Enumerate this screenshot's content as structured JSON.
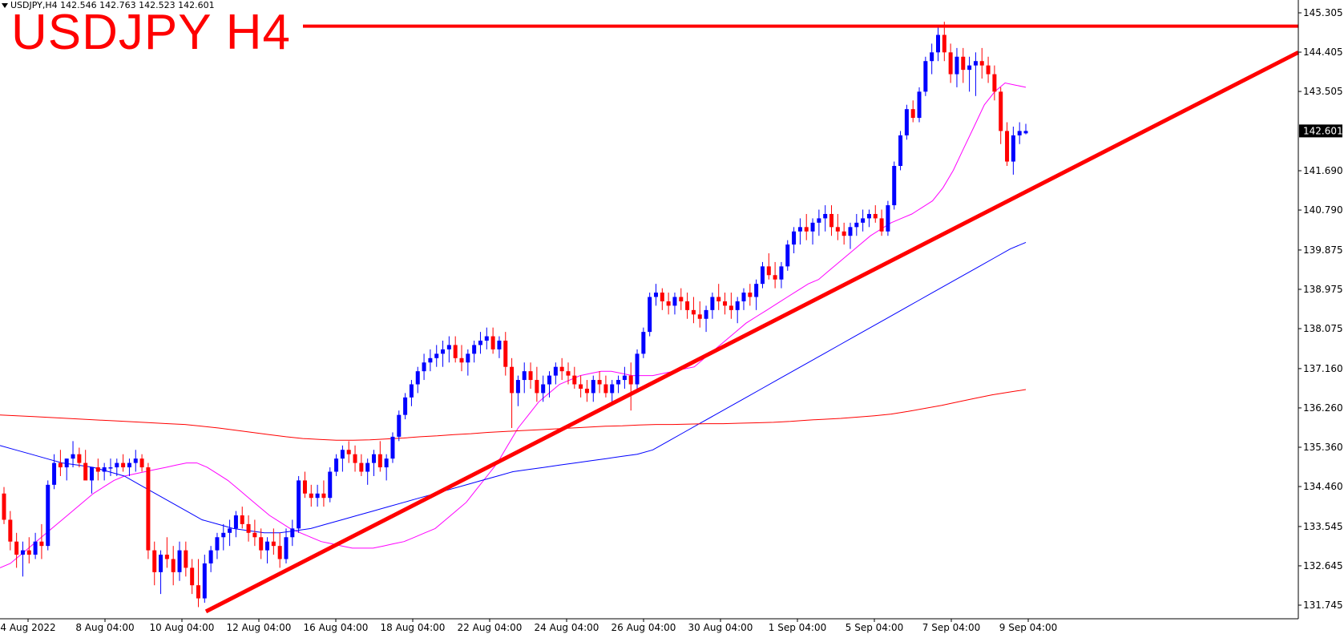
{
  "header": {
    "symbol_line": "USDJPY,H4  142.546 142.763 142.523 142.601"
  },
  "title": "USDJPY H4",
  "current_price": "142.601",
  "colors": {
    "bull": "#0000ff",
    "bear": "#ff0000",
    "ma_fast": "#ff00ff",
    "ma_mid": "#0000ff",
    "ma_slow": "#ff0000",
    "trend": "#ff0000",
    "axis": "#000000",
    "price_tag_bg": "#000000"
  },
  "chart_data": {
    "type": "candlestick",
    "y_axis_ticks": [
      "145.305",
      "144.405",
      "143.505",
      "142.601",
      "141.690",
      "140.790",
      "139.875",
      "138.975",
      "138.075",
      "137.160",
      "136.260",
      "135.360",
      "134.460",
      "133.545",
      "132.645",
      "131.745"
    ],
    "ylim": [
      131.5,
      145.5
    ],
    "x_axis_ticks": [
      "4 Aug 2022",
      "8 Aug 04:00",
      "10 Aug 04:00",
      "12 Aug 04:00",
      "16 Aug 04:00",
      "18 Aug 04:00",
      "22 Aug 04:00",
      "24 Aug 04:00",
      "26 Aug 04:00",
      "30 Aug 04:00",
      "1 Sep 04:00",
      "5 Sep 04:00",
      "7 Sep 04:00",
      "9 Sep 04:00"
    ],
    "candles_ohlc": [
      [
        134.3,
        134.45,
        133.6,
        133.7
      ],
      [
        133.7,
        133.9,
        133.0,
        133.2
      ],
      [
        133.2,
        133.4,
        132.6,
        132.9
      ],
      [
        132.9,
        133.2,
        132.4,
        133.0
      ],
      [
        133.0,
        133.3,
        132.7,
        132.9
      ],
      [
        132.9,
        133.4,
        132.8,
        133.2
      ],
      [
        133.2,
        133.6,
        132.8,
        133.1
      ],
      [
        133.1,
        134.6,
        133.0,
        134.5
      ],
      [
        134.5,
        135.2,
        134.4,
        135.0
      ],
      [
        135.0,
        135.3,
        134.7,
        134.9
      ],
      [
        134.9,
        135.1,
        134.6,
        135.1
      ],
      [
        135.1,
        135.5,
        134.9,
        135.2
      ],
      [
        135.2,
        135.35,
        134.9,
        135.0
      ],
      [
        135.0,
        135.3,
        134.7,
        134.6
      ],
      [
        134.6,
        134.9,
        134.3,
        134.9
      ],
      [
        134.9,
        135.1,
        134.6,
        134.8
      ],
      [
        134.8,
        135.0,
        134.6,
        134.9
      ],
      [
        134.9,
        135.1,
        134.7,
        134.9
      ],
      [
        134.9,
        135.1,
        134.7,
        135.0
      ],
      [
        135.0,
        135.2,
        134.8,
        134.9
      ],
      [
        134.9,
        135.1,
        134.7,
        135.0
      ],
      [
        135.0,
        135.3,
        134.8,
        135.1
      ],
      [
        135.1,
        135.2,
        134.8,
        134.9
      ],
      [
        134.9,
        135.0,
        132.8,
        133.0
      ],
      [
        133.0,
        133.2,
        132.2,
        132.5
      ],
      [
        132.5,
        133.0,
        132.0,
        132.9
      ],
      [
        132.9,
        133.3,
        132.6,
        132.8
      ],
      [
        132.8,
        133.1,
        132.2,
        132.5
      ],
      [
        132.5,
        133.2,
        132.3,
        133.0
      ],
      [
        133.0,
        133.2,
        132.4,
        132.6
      ],
      [
        132.6,
        132.8,
        132.0,
        132.2
      ],
      [
        132.2,
        132.8,
        131.7,
        131.9
      ],
      [
        131.9,
        132.9,
        131.8,
        132.7
      ],
      [
        132.7,
        133.1,
        132.5,
        133.0
      ],
      [
        133.0,
        133.4,
        132.8,
        133.3
      ],
      [
        133.3,
        133.6,
        133.0,
        133.4
      ],
      [
        133.4,
        133.7,
        133.1,
        133.5
      ],
      [
        133.5,
        133.9,
        133.3,
        133.8
      ],
      [
        133.8,
        134.0,
        133.5,
        133.6
      ],
      [
        133.6,
        133.8,
        133.2,
        133.4
      ],
      [
        133.4,
        133.7,
        133.1,
        133.3
      ],
      [
        133.3,
        133.5,
        132.8,
        133.0
      ],
      [
        133.0,
        133.3,
        132.7,
        133.2
      ],
      [
        133.2,
        133.5,
        132.9,
        133.1
      ],
      [
        133.1,
        133.4,
        132.6,
        132.8
      ],
      [
        132.8,
        133.5,
        132.7,
        133.3
      ],
      [
        133.3,
        133.7,
        133.1,
        133.5
      ],
      [
        133.5,
        134.7,
        133.4,
        134.6
      ],
      [
        134.6,
        134.8,
        134.2,
        134.3
      ],
      [
        134.3,
        134.5,
        134.0,
        134.2
      ],
      [
        134.2,
        134.5,
        134.0,
        134.3
      ],
      [
        134.3,
        134.6,
        134.0,
        134.2
      ],
      [
        134.2,
        134.9,
        134.1,
        134.8
      ],
      [
        134.8,
        135.2,
        134.7,
        135.1
      ],
      [
        135.1,
        135.4,
        134.8,
        135.3
      ],
      [
        135.3,
        135.5,
        135.0,
        135.2
      ],
      [
        135.2,
        135.4,
        134.8,
        135.0
      ],
      [
        135.0,
        135.2,
        134.7,
        134.8
      ],
      [
        134.8,
        135.1,
        134.5,
        135.0
      ],
      [
        135.0,
        135.3,
        134.7,
        135.2
      ],
      [
        135.2,
        135.5,
        134.8,
        134.9
      ],
      [
        134.9,
        135.2,
        134.6,
        135.1
      ],
      [
        135.1,
        135.7,
        135.0,
        135.6
      ],
      [
        135.6,
        136.2,
        135.5,
        136.1
      ],
      [
        136.1,
        136.6,
        136.0,
        136.5
      ],
      [
        136.5,
        136.9,
        136.3,
        136.8
      ],
      [
        136.8,
        137.2,
        136.6,
        137.1
      ],
      [
        137.1,
        137.5,
        136.9,
        137.3
      ],
      [
        137.3,
        137.6,
        137.1,
        137.4
      ],
      [
        137.4,
        137.7,
        137.2,
        137.5
      ],
      [
        137.5,
        137.8,
        137.2,
        137.6
      ],
      [
        137.6,
        137.9,
        137.3,
        137.7
      ],
      [
        137.7,
        137.9,
        137.3,
        137.4
      ],
      [
        137.4,
        137.7,
        137.1,
        137.3
      ],
      [
        137.3,
        137.6,
        137.0,
        137.5
      ],
      [
        137.5,
        137.8,
        137.3,
        137.7
      ],
      [
        137.7,
        138.0,
        137.5,
        137.8
      ],
      [
        137.8,
        138.1,
        137.6,
        137.9
      ],
      [
        137.9,
        138.1,
        137.5,
        137.6
      ],
      [
        137.6,
        137.9,
        137.4,
        137.8
      ],
      [
        137.8,
        138.0,
        137.0,
        137.2
      ],
      [
        137.2,
        137.4,
        135.8,
        136.6
      ],
      [
        136.6,
        137.0,
        136.3,
        136.9
      ],
      [
        136.9,
        137.3,
        136.6,
        137.1
      ],
      [
        137.1,
        137.3,
        136.7,
        136.9
      ],
      [
        136.9,
        137.2,
        136.4,
        136.6
      ],
      [
        136.6,
        137.0,
        136.4,
        136.8
      ],
      [
        136.8,
        137.1,
        136.5,
        137.0
      ],
      [
        137.0,
        137.3,
        136.8,
        137.2
      ],
      [
        137.2,
        137.4,
        136.9,
        137.1
      ],
      [
        137.1,
        137.3,
        136.8,
        137.0
      ],
      [
        137.0,
        137.2,
        136.7,
        136.8
      ],
      [
        136.8,
        137.0,
        136.5,
        136.7
      ],
      [
        136.7,
        136.9,
        136.4,
        136.6
      ],
      [
        136.6,
        137.0,
        136.4,
        136.9
      ],
      [
        136.9,
        137.1,
        136.6,
        136.8
      ],
      [
        136.8,
        137.0,
        136.5,
        136.6
      ],
      [
        136.6,
        136.9,
        136.4,
        136.8
      ],
      [
        136.8,
        137.0,
        136.6,
        136.9
      ],
      [
        136.9,
        137.2,
        136.7,
        137.0
      ],
      [
        137.0,
        137.3,
        136.2,
        136.8
      ],
      [
        136.8,
        137.6,
        136.7,
        137.5
      ],
      [
        137.5,
        138.1,
        137.4,
        138.0
      ],
      [
        138.0,
        138.9,
        137.9,
        138.8
      ],
      [
        138.8,
        139.1,
        138.6,
        138.9
      ],
      [
        138.9,
        139.0,
        138.5,
        138.7
      ],
      [
        138.7,
        138.9,
        138.4,
        138.6
      ],
      [
        138.6,
        138.9,
        138.4,
        138.8
      ],
      [
        138.8,
        139.0,
        138.5,
        138.7
      ],
      [
        138.7,
        138.9,
        138.3,
        138.5
      ],
      [
        138.5,
        138.8,
        138.2,
        138.4
      ],
      [
        138.4,
        138.7,
        138.1,
        138.3
      ],
      [
        138.3,
        138.6,
        138.0,
        138.5
      ],
      [
        138.5,
        138.9,
        138.3,
        138.8
      ],
      [
        138.8,
        139.1,
        138.5,
        138.7
      ],
      [
        138.7,
        138.9,
        138.4,
        138.6
      ],
      [
        138.6,
        138.9,
        138.3,
        138.5
      ],
      [
        138.5,
        138.8,
        138.2,
        138.7
      ],
      [
        138.7,
        139.0,
        138.5,
        138.9
      ],
      [
        138.9,
        139.1,
        138.6,
        138.8
      ],
      [
        138.8,
        139.2,
        138.5,
        139.1
      ],
      [
        139.1,
        139.6,
        139.0,
        139.5
      ],
      [
        139.5,
        139.8,
        139.2,
        139.3
      ],
      [
        139.3,
        139.6,
        139.0,
        139.2
      ],
      [
        139.2,
        139.6,
        139.0,
        139.5
      ],
      [
        139.5,
        140.1,
        139.4,
        140.0
      ],
      [
        140.0,
        140.4,
        139.8,
        140.3
      ],
      [
        140.3,
        140.6,
        140.0,
        140.4
      ],
      [
        140.4,
        140.7,
        140.1,
        140.3
      ],
      [
        140.3,
        140.6,
        140.0,
        140.5
      ],
      [
        140.5,
        140.8,
        140.2,
        140.6
      ],
      [
        140.6,
        140.9,
        140.3,
        140.7
      ],
      [
        140.7,
        140.9,
        140.2,
        140.4
      ],
      [
        140.4,
        140.7,
        140.1,
        140.3
      ],
      [
        140.3,
        140.5,
        140.0,
        140.2
      ],
      [
        140.2,
        140.5,
        139.9,
        140.4
      ],
      [
        140.4,
        140.7,
        140.2,
        140.5
      ],
      [
        140.5,
        140.8,
        140.3,
        140.6
      ],
      [
        140.6,
        140.8,
        140.4,
        140.7
      ],
      [
        140.7,
        140.9,
        140.5,
        140.6
      ],
      [
        140.6,
        140.8,
        140.2,
        140.3
      ],
      [
        140.3,
        141.0,
        140.2,
        140.9
      ],
      [
        140.9,
        141.9,
        140.8,
        141.8
      ],
      [
        141.8,
        142.6,
        141.7,
        142.5
      ],
      [
        142.5,
        143.2,
        142.4,
        143.1
      ],
      [
        143.1,
        143.3,
        142.8,
        142.9
      ],
      [
        142.9,
        143.6,
        142.8,
        143.5
      ],
      [
        143.5,
        144.3,
        143.4,
        144.2
      ],
      [
        144.2,
        144.6,
        143.9,
        144.4
      ],
      [
        144.4,
        145.0,
        144.2,
        144.8
      ],
      [
        144.8,
        145.1,
        144.2,
        144.4
      ],
      [
        144.4,
        144.6,
        143.7,
        143.9
      ],
      [
        143.9,
        144.5,
        143.6,
        144.3
      ],
      [
        144.3,
        144.5,
        143.7,
        144.0
      ],
      [
        144.0,
        144.3,
        143.5,
        144.1
      ],
      [
        144.1,
        144.4,
        143.4,
        144.2
      ],
      [
        144.2,
        144.5,
        143.8,
        144.1
      ],
      [
        144.1,
        144.3,
        143.7,
        143.9
      ],
      [
        143.9,
        144.1,
        143.3,
        143.5
      ],
      [
        143.5,
        143.6,
        142.3,
        142.6
      ],
      [
        142.6,
        142.8,
        141.8,
        141.9
      ],
      [
        141.9,
        142.7,
        141.6,
        142.5
      ],
      [
        142.5,
        142.8,
        142.3,
        142.6
      ],
      [
        142.546,
        142.763,
        142.523,
        142.601
      ]
    ],
    "ma_fast": [
      132.6,
      132.7,
      132.9,
      133.1,
      133.3,
      133.5,
      133.7,
      133.9,
      134.1,
      134.3,
      134.45,
      134.6,
      134.7,
      134.75,
      134.8,
      134.85,
      134.9,
      134.95,
      135.0,
      135.0,
      134.9,
      134.75,
      134.6,
      134.4,
      134.2,
      134.0,
      133.8,
      133.65,
      133.5,
      133.4,
      133.3,
      133.2,
      133.15,
      133.1,
      133.05,
      133.05,
      133.05,
      133.1,
      133.15,
      133.2,
      133.3,
      133.4,
      133.5,
      133.7,
      133.9,
      134.1,
      134.4,
      134.7,
      135.0,
      135.4,
      135.8,
      136.1,
      136.4,
      136.6,
      136.8,
      136.9,
      137.0,
      137.05,
      137.1,
      137.1,
      137.05,
      137.0,
      137.0,
      137.0,
      137.05,
      137.1,
      137.15,
      137.2,
      137.4,
      137.6,
      137.8,
      138.0,
      138.2,
      138.35,
      138.5,
      138.65,
      138.8,
      138.95,
      139.1,
      139.2,
      139.4,
      139.6,
      139.8,
      140.0,
      140.2,
      140.35,
      140.5,
      140.6,
      140.7,
      140.85,
      141.0,
      141.3,
      141.7,
      142.2,
      142.7,
      143.2,
      143.5,
      143.7,
      143.65,
      143.6
    ],
    "ma_mid": [
      135.4,
      135.3,
      135.2,
      135.1,
      135.0,
      134.95,
      134.9,
      134.8,
      134.7,
      134.5,
      134.3,
      134.1,
      133.9,
      133.7,
      133.6,
      133.5,
      133.45,
      133.4,
      133.4,
      133.45,
      133.5,
      133.6,
      133.7,
      133.8,
      133.9,
      134.0,
      134.1,
      134.2,
      134.3,
      134.4,
      134.5,
      134.6,
      134.7,
      134.8,
      134.85,
      134.9,
      134.95,
      135.0,
      135.05,
      135.1,
      135.15,
      135.2,
      135.3,
      135.5,
      135.7,
      135.9,
      136.1,
      136.3,
      136.5,
      136.7,
      136.9,
      137.1,
      137.3,
      137.5,
      137.7,
      137.9,
      138.1,
      138.3,
      138.5,
      138.7,
      138.9,
      139.1,
      139.3,
      139.5,
      139.7,
      139.9,
      140.05
    ],
    "ma_slow": [
      136.1,
      136.08,
      136.06,
      136.04,
      136.02,
      136.0,
      135.98,
      135.96,
      135.94,
      135.92,
      135.9,
      135.88,
      135.84,
      135.8,
      135.75,
      135.7,
      135.65,
      135.6,
      135.56,
      135.54,
      135.52,
      135.52,
      135.53,
      135.55,
      135.57,
      135.6,
      135.62,
      135.65,
      135.67,
      135.7,
      135.72,
      135.74,
      135.76,
      135.78,
      135.8,
      135.82,
      135.84,
      135.85,
      135.87,
      135.88,
      135.88,
      135.89,
      135.9,
      135.9,
      135.91,
      135.92,
      135.93,
      135.95,
      135.98,
      136.0,
      136.02,
      136.05,
      136.08,
      136.12,
      136.18,
      136.25,
      136.32,
      136.4,
      136.48,
      136.56,
      136.62,
      136.68
    ],
    "resistance_level": 145.0,
    "trendline": {
      "from": [
        131.6,
        "11 Aug"
      ],
      "to": [
        144.4,
        "9 Sep+"
      ]
    }
  }
}
